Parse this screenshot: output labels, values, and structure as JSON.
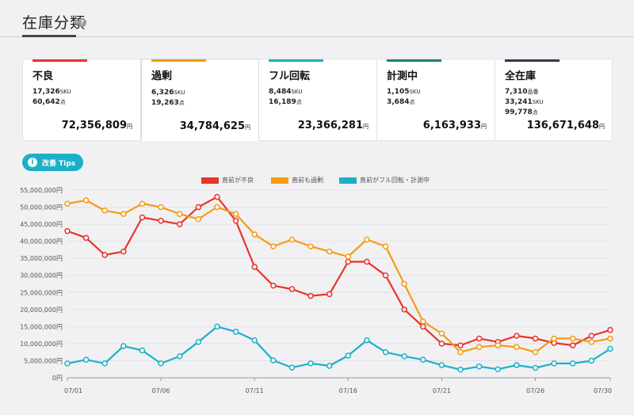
{
  "page": {
    "title": "在庫分類"
  },
  "cards": [
    {
      "title": "不良",
      "accent": "#e8342a",
      "lines": [
        {
          "value": "17,326",
          "unit": "SKU"
        },
        {
          "value": "60,642",
          "unit": "点"
        }
      ],
      "total": "72,356,809",
      "total_unit": "円"
    },
    {
      "title": "過剰",
      "accent": "#f39c12",
      "lines": [
        {
          "value": "6,326",
          "unit": "SKU"
        },
        {
          "value": "19,263",
          "unit": "点"
        }
      ],
      "total": "34,784,625",
      "total_unit": "円"
    },
    {
      "title": "フル回転",
      "accent": "#1cb0c8",
      "lines": [
        {
          "value": "8,484",
          "unit": "SKU"
        },
        {
          "value": "16,189",
          "unit": "点"
        }
      ],
      "total": "23,366,281",
      "total_unit": "円"
    },
    {
      "title": "計測中",
      "accent": "#16866f",
      "lines": [
        {
          "value": "1,105",
          "unit": "SKU"
        },
        {
          "value": "3,684",
          "unit": "点"
        }
      ],
      "total": "6,163,933",
      "total_unit": "円"
    },
    {
      "title": "全在庫",
      "accent": "#333a4a",
      "lines": [
        {
          "value": "7,310",
          "unit": "品番"
        },
        {
          "value": "33,241",
          "unit": "SKU"
        },
        {
          "value": "99,778",
          "unit": "点"
        }
      ],
      "total": "136,671,648",
      "total_unit": "円"
    }
  ],
  "tips": {
    "label": "改善 Tips"
  },
  "chart_data": {
    "type": "line",
    "x": [
      "07/01",
      "07/02",
      "07/03",
      "07/04",
      "07/05",
      "07/06",
      "07/07",
      "07/08",
      "07/09",
      "07/10",
      "07/11",
      "07/12",
      "07/13",
      "07/14",
      "07/15",
      "07/16",
      "07/17",
      "07/18",
      "07/19",
      "07/20",
      "07/21",
      "07/22",
      "07/23",
      "07/24",
      "07/25",
      "07/26",
      "07/27",
      "07/28",
      "07/29",
      "07/30"
    ],
    "xtick_labels": [
      "07/01",
      "07/06",
      "07/11",
      "07/16",
      "07/21",
      "07/26",
      "07/30"
    ],
    "ytick_labels": [
      "0円",
      "5,000,000円",
      "10,000,000円",
      "15,000,000円",
      "20,000,000円",
      "25,000,000円",
      "30,000,000円",
      "35,000,000円",
      "40,000,000円",
      "45,000,000円",
      "50,000,000円",
      "55,000,000円"
    ],
    "ylim": [
      0,
      55000000
    ],
    "grid": true,
    "legend_position": "top",
    "series": [
      {
        "name": "直前が不良",
        "color": "#e8342a",
        "values": [
          43000000,
          41000000,
          36000000,
          37000000,
          47000000,
          46000000,
          45000000,
          50000000,
          53000000,
          46000000,
          32500000,
          27000000,
          26000000,
          24000000,
          24500000,
          34000000,
          34000000,
          30000000,
          20000000,
          15000000,
          10000000,
          9500000,
          11500000,
          10500000,
          12300000,
          11500000,
          10200000,
          9500000,
          12300000,
          14000000
        ]
      },
      {
        "name": "直前も過剰",
        "color": "#f39c12",
        "values": [
          51000000,
          52000000,
          49000000,
          48000000,
          51000000,
          50000000,
          48000000,
          46500000,
          50000000,
          48000000,
          42000000,
          38500000,
          40500000,
          38500000,
          37000000,
          35500000,
          40500000,
          38500000,
          27500000,
          16500000,
          13000000,
          7500000,
          9000000,
          9500000,
          9000000,
          7500000,
          11500000,
          11500000,
          10500000,
          11500000
        ]
      },
      {
        "name": "直前がフル回転・計測中",
        "color": "#1cb0c8",
        "values": [
          4200000,
          5300000,
          4200000,
          9300000,
          8000000,
          4200000,
          6300000,
          10500000,
          15000000,
          13500000,
          11000000,
          5100000,
          3000000,
          4200000,
          3500000,
          6500000,
          11000000,
          7500000,
          6300000,
          5300000,
          3700000,
          2400000,
          3300000,
          2500000,
          3700000,
          2900000,
          4200000,
          4200000,
          5000000,
          8500000
        ]
      }
    ]
  }
}
